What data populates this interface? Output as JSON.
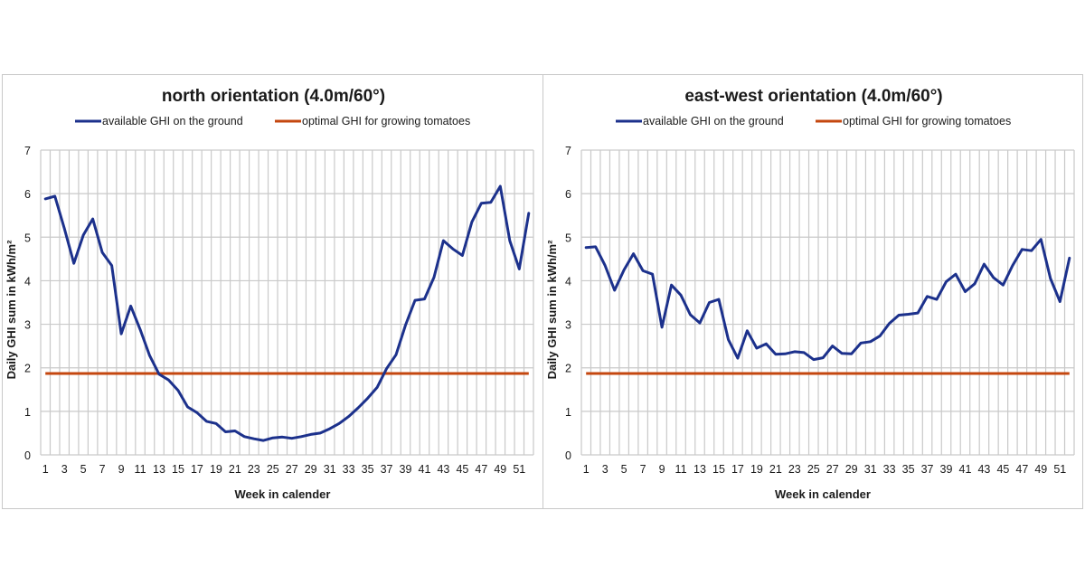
{
  "colors": {
    "ghi_line": "#1c318c",
    "optimal_line": "#c4470f",
    "grid": "#c9c9c9",
    "frame": "#c8c8c8"
  },
  "chart_data": [
    {
      "type": "line",
      "title": "north orientation (4.0m/60°)",
      "xlabel": "Week in calender",
      "ylabel": "Daily GHI sum in kWh/m²",
      "ylim": [
        0,
        7
      ],
      "yticks": [
        "0",
        "1",
        "2",
        "3",
        "4",
        "5",
        "6",
        "7"
      ],
      "xlim": [
        1,
        52
      ],
      "xticks": [
        "1",
        "3",
        "5",
        "7",
        "9",
        "11",
        "13",
        "15",
        "17",
        "19",
        "21",
        "23",
        "25",
        "27",
        "29",
        "31",
        "33",
        "35",
        "37",
        "39",
        "41",
        "43",
        "45",
        "47",
        "49",
        "51"
      ],
      "grid": true,
      "legend_position": "top-center",
      "series": [
        {
          "name": "available GHI on the ground",
          "color": "#1c318c",
          "x": [
            1,
            2,
            3,
            4,
            5,
            6,
            7,
            8,
            9,
            10,
            11,
            12,
            13,
            14,
            15,
            16,
            17,
            18,
            19,
            20,
            21,
            22,
            23,
            24,
            25,
            26,
            27,
            28,
            29,
            30,
            31,
            32,
            33,
            34,
            35,
            36,
            37,
            38,
            39,
            40,
            41,
            42,
            43,
            44,
            45,
            46,
            47,
            48,
            49,
            50,
            51,
            52
          ],
          "values": [
            5.88,
            5.94,
            5.2,
            4.4,
            5.05,
            5.42,
            4.65,
            4.35,
            2.78,
            3.42,
            2.88,
            2.28,
            1.85,
            1.72,
            1.48,
            1.1,
            0.97,
            0.77,
            0.72,
            0.53,
            0.55,
            0.42,
            0.37,
            0.33,
            0.39,
            0.41,
            0.38,
            0.42,
            0.47,
            0.5,
            0.6,
            0.72,
            0.88,
            1.08,
            1.3,
            1.55,
            1.98,
            2.3,
            2.98,
            3.55,
            3.58,
            4.08,
            4.92,
            4.73,
            4.58,
            5.35,
            5.78,
            5.8,
            6.17,
            4.92,
            4.27,
            5.55
          ]
        },
        {
          "name": "optimal GHI for growing tomatoes",
          "color": "#c4470f",
          "x": [
            1,
            52
          ],
          "values": [
            1.87,
            1.87
          ]
        }
      ]
    },
    {
      "type": "line",
      "title": "east-west orientation (4.0m/60°)",
      "xlabel": "Week in calender",
      "ylabel": "Daily GHI sum in kWh/m²",
      "ylim": [
        0,
        7
      ],
      "yticks": [
        "0",
        "1",
        "2",
        "3",
        "4",
        "5",
        "6",
        "7"
      ],
      "xlim": [
        1,
        52
      ],
      "xticks": [
        "1",
        "3",
        "5",
        "7",
        "9",
        "11",
        "13",
        "15",
        "17",
        "19",
        "21",
        "23",
        "25",
        "27",
        "29",
        "31",
        "33",
        "35",
        "37",
        "39",
        "41",
        "43",
        "45",
        "47",
        "49",
        "51"
      ],
      "grid": true,
      "legend_position": "top-center",
      "series": [
        {
          "name": "available GHI on the ground",
          "color": "#1c318c",
          "x": [
            1,
            2,
            3,
            4,
            5,
            6,
            7,
            8,
            9,
            10,
            11,
            12,
            13,
            14,
            15,
            16,
            17,
            18,
            19,
            20,
            21,
            22,
            23,
            24,
            25,
            26,
            27,
            28,
            29,
            30,
            31,
            32,
            33,
            34,
            35,
            36,
            37,
            38,
            39,
            40,
            41,
            42,
            43,
            44,
            45,
            46,
            47,
            48,
            49,
            50,
            51,
            52
          ],
          "values": [
            4.76,
            4.78,
            4.35,
            3.78,
            4.25,
            4.62,
            4.23,
            4.15,
            2.93,
            3.9,
            3.67,
            3.22,
            3.03,
            3.5,
            3.57,
            2.65,
            2.22,
            2.85,
            2.45,
            2.55,
            2.31,
            2.32,
            2.37,
            2.35,
            2.19,
            2.23,
            2.5,
            2.33,
            2.32,
            2.57,
            2.6,
            2.73,
            3.02,
            3.21,
            3.23,
            3.26,
            3.64,
            3.57,
            3.98,
            4.15,
            3.75,
            3.93,
            4.38,
            4.07,
            3.9,
            4.35,
            4.72,
            4.69,
            4.95,
            4.05,
            3.52,
            4.52
          ]
        },
        {
          "name": "optimal GHI for growing tomatoes",
          "color": "#c4470f",
          "x": [
            1,
            52
          ],
          "values": [
            1.87,
            1.87
          ]
        }
      ]
    }
  ]
}
